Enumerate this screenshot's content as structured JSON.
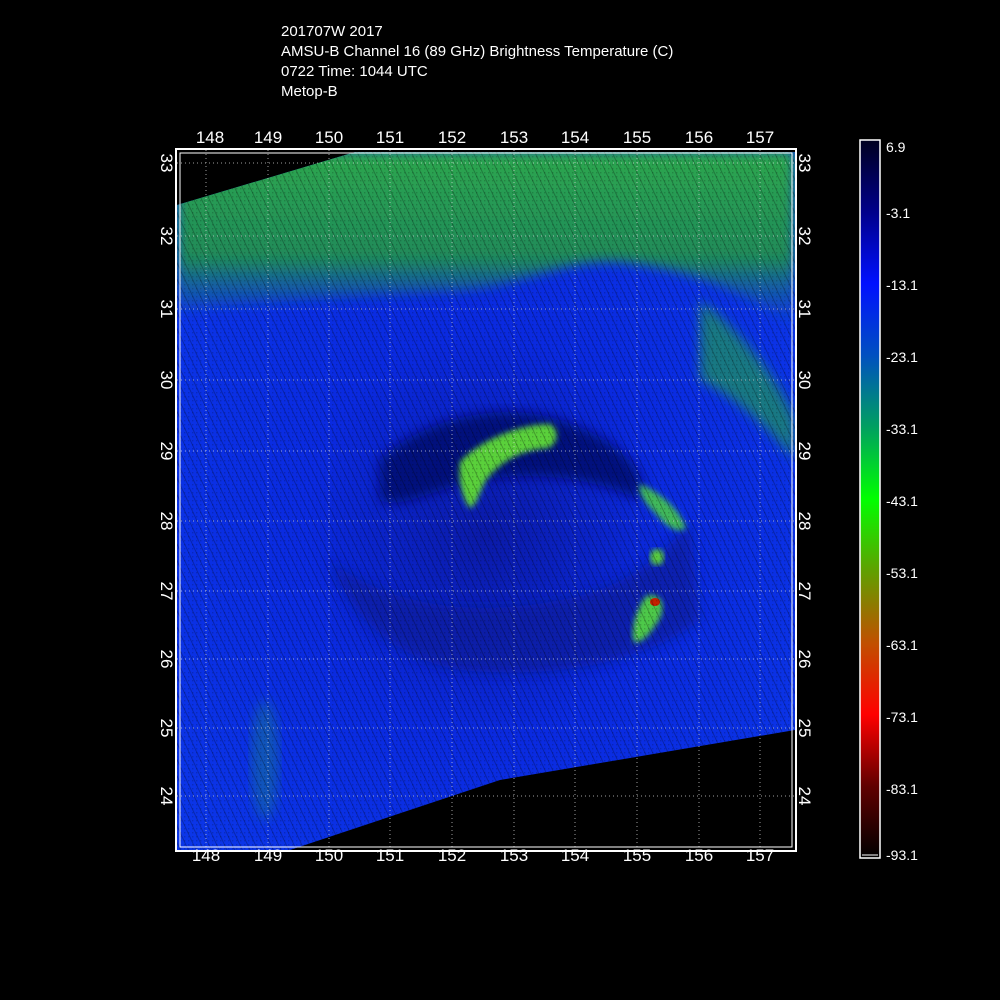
{
  "title": {
    "line1": "201707W 2017",
    "line2": "AMSU-B Channel 16 (89 GHz) Brightness Temperature (C)",
    "line3": "0722 Time: 1044 UTC",
    "line4": "Metop-B"
  },
  "map": {
    "lon_ticks": [
      "148",
      "149",
      "150",
      "151",
      "152",
      "153",
      "154",
      "155",
      "156",
      "157"
    ],
    "lat_ticks": [
      "33",
      "32",
      "31",
      "30",
      "29",
      "28",
      "27",
      "26",
      "25",
      "24"
    ],
    "lon_range": [
      147.5,
      157.6
    ],
    "lat_range": [
      23.4,
      33.2
    ]
  },
  "colorbar": {
    "labels": [
      "6.9",
      "-3.1",
      "-13.1",
      "-23.1",
      "-33.1",
      "-43.1",
      "-53.1",
      "-63.1",
      "-73.1",
      "-83.1",
      "-93.1"
    ],
    "colors": [
      "#000020",
      "#00008a",
      "#0010ff",
      "#0050c0",
      "#00a060",
      "#00ff00",
      "#60a000",
      "#c05000",
      "#ff0000",
      "#600000",
      "#000000"
    ]
  },
  "palette": {
    "background": "#000000",
    "swath_blue": "#0a28e6",
    "swath_deep_blue": "#0a1890",
    "swath_green": "#1c9a4a",
    "swath_lime": "#5ad03a",
    "hot_red": "#c42000"
  }
}
